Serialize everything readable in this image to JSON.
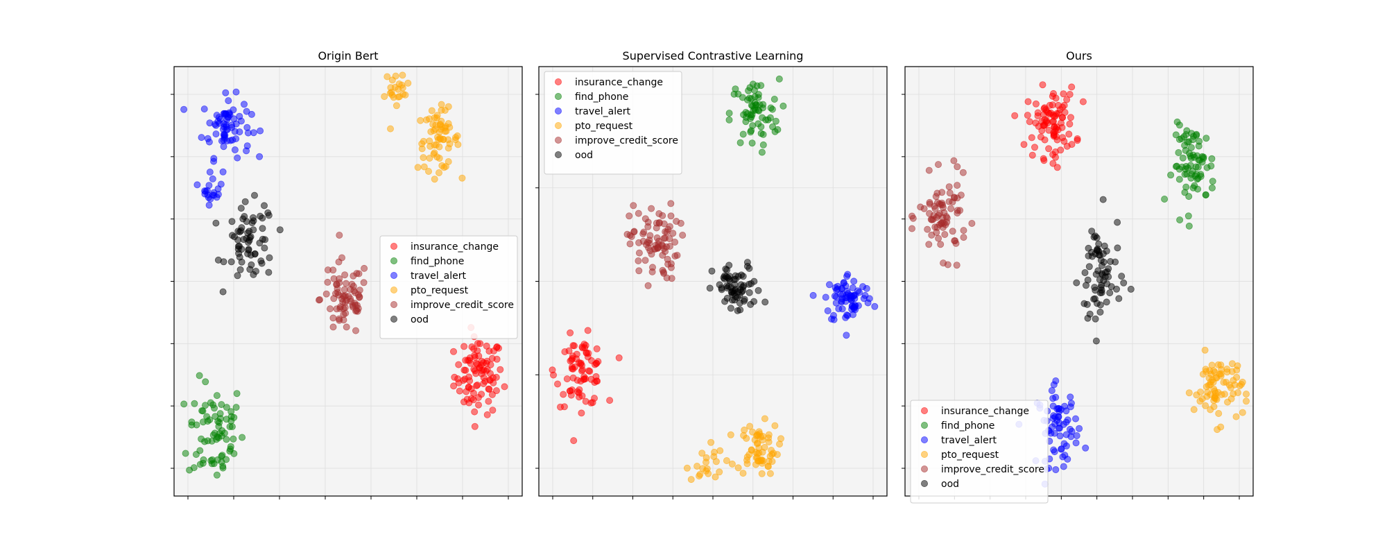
{
  "chart_data": [
    {
      "type": "scatter",
      "title": "Origin Bert",
      "legend_position": "center-right",
      "grid": true,
      "series": [
        {
          "name": "insurance_change",
          "color": "#ff0000",
          "clusters": [
            {
              "cx": 0.875,
              "cy": 0.28,
              "sx": 0.035,
              "sy": 0.045,
              "n": 90
            }
          ]
        },
        {
          "name": "find_phone",
          "color": "#008000",
          "clusters": [
            {
              "cx": 0.12,
              "cy": 0.15,
              "sx": 0.04,
              "sy": 0.06,
              "n": 75
            }
          ]
        },
        {
          "name": "travel_alert",
          "color": "#0000ff",
          "clusters": [
            {
              "cx": 0.15,
              "cy": 0.86,
              "sx": 0.035,
              "sy": 0.035,
              "n": 70
            },
            {
              "cx": 0.11,
              "cy": 0.72,
              "sx": 0.015,
              "sy": 0.02,
              "n": 20
            }
          ]
        },
        {
          "name": "pto_request",
          "color": "#ffa500",
          "clusters": [
            {
              "cx": 0.64,
              "cy": 0.94,
              "sx": 0.018,
              "sy": 0.025,
              "n": 22
            },
            {
              "cx": 0.76,
              "cy": 0.83,
              "sx": 0.03,
              "sy": 0.035,
              "n": 65
            }
          ]
        },
        {
          "name": "improve_credit_score",
          "color": "#a52a2a",
          "clusters": [
            {
              "cx": 0.49,
              "cy": 0.46,
              "sx": 0.035,
              "sy": 0.045,
              "n": 70
            }
          ]
        },
        {
          "name": "ood",
          "color": "#000000",
          "clusters": [
            {
              "cx": 0.22,
              "cy": 0.59,
              "sx": 0.035,
              "sy": 0.045,
              "n": 65
            }
          ]
        }
      ]
    },
    {
      "type": "scatter",
      "title": "Supervised Contrastive Learning",
      "legend_position": "upper-left",
      "grid": true,
      "series": [
        {
          "name": "insurance_change",
          "color": "#ff0000",
          "clusters": [
            {
              "cx": 0.12,
              "cy": 0.29,
              "sx": 0.035,
              "sy": 0.04,
              "n": 75
            }
          ]
        },
        {
          "name": "find_phone",
          "color": "#008000",
          "clusters": [
            {
              "cx": 0.62,
              "cy": 0.89,
              "sx": 0.035,
              "sy": 0.04,
              "n": 65
            }
          ]
        },
        {
          "name": "travel_alert",
          "color": "#0000ff",
          "clusters": [
            {
              "cx": 0.89,
              "cy": 0.46,
              "sx": 0.035,
              "sy": 0.03,
              "n": 70
            }
          ]
        },
        {
          "name": "pto_request",
          "color": "#ffa500",
          "clusters": [
            {
              "cx": 0.48,
              "cy": 0.08,
              "sx": 0.025,
              "sy": 0.025,
              "n": 20
            },
            {
              "cx": 0.63,
              "cy": 0.11,
              "sx": 0.03,
              "sy": 0.03,
              "n": 60
            }
          ]
        },
        {
          "name": "improve_credit_score",
          "color": "#a52a2a",
          "clusters": [
            {
              "cx": 0.33,
              "cy": 0.59,
              "sx": 0.035,
              "sy": 0.045,
              "n": 80
            }
          ]
        },
        {
          "name": "ood",
          "color": "#000000",
          "clusters": [
            {
              "cx": 0.57,
              "cy": 0.48,
              "sx": 0.035,
              "sy": 0.03,
              "n": 65
            }
          ]
        }
      ]
    },
    {
      "type": "scatter",
      "title": "Ours",
      "legend_position": "lower-left",
      "grid": true,
      "series": [
        {
          "name": "insurance_change",
          "color": "#ff0000",
          "clusters": [
            {
              "cx": 0.42,
              "cy": 0.87,
              "sx": 0.035,
              "sy": 0.04,
              "n": 90
            }
          ]
        },
        {
          "name": "find_phone",
          "color": "#008000",
          "clusters": [
            {
              "cx": 0.83,
              "cy": 0.77,
              "sx": 0.03,
              "sy": 0.045,
              "n": 75
            }
          ]
        },
        {
          "name": "travel_alert",
          "color": "#0000ff",
          "clusters": [
            {
              "cx": 0.44,
              "cy": 0.16,
              "sx": 0.03,
              "sy": 0.045,
              "n": 70
            }
          ]
        },
        {
          "name": "pto_request",
          "color": "#ffa500",
          "clusters": [
            {
              "cx": 0.9,
              "cy": 0.25,
              "sx": 0.035,
              "sy": 0.04,
              "n": 75
            }
          ]
        },
        {
          "name": "improve_credit_score",
          "color": "#a52a2a",
          "clusters": [
            {
              "cx": 0.11,
              "cy": 0.65,
              "sx": 0.035,
              "sy": 0.045,
              "n": 75
            }
          ]
        },
        {
          "name": "ood",
          "color": "#000000",
          "clusters": [
            {
              "cx": 0.56,
              "cy": 0.51,
              "sx": 0.03,
              "sy": 0.07,
              "n": 70
            }
          ]
        }
      ]
    }
  ]
}
